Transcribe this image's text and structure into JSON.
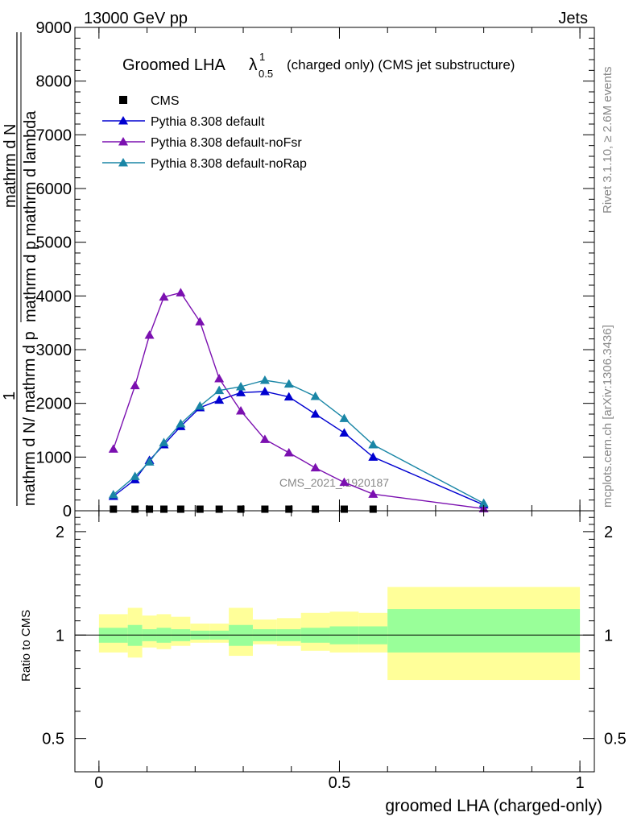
{
  "header": {
    "left": "13000 GeV pp",
    "right": "Jets"
  },
  "side_labels": {
    "rivet": "Rivet 3.1.10, ≥ 2.6M events",
    "mcplots": "mcplots.cern.ch [arXiv:1306.3436]"
  },
  "chart_data": [
    {
      "type": "line",
      "title": "Groomed LHA",
      "title_symbol": "λ",
      "title_superscript": "1",
      "title_subscript": "0.5",
      "title_suffix": "(charged only) (CMS jet substructure)",
      "ylabel_parts": [
        "1",
        "mathrm d N/ mathrm d p",
        "mathrm d N",
        "mathrm d p mathrm d lambda"
      ],
      "watermark": "CMS_2021_I1920187",
      "xlim": [
        -0.05,
        1.03
      ],
      "ylim": [
        0,
        9000
      ],
      "yticks": [
        0,
        1000,
        2000,
        3000,
        4000,
        5000,
        6000,
        7000,
        8000,
        9000
      ],
      "yticklabels": [
        "0",
        "1000",
        "2000",
        "3000",
        "4000",
        "5000",
        "6000",
        "7000",
        "8000",
        "9000"
      ],
      "legend_position": "top-left",
      "series": [
        {
          "name": "CMS",
          "marker": "square",
          "color": "#000000",
          "x": [
            0.03,
            0.075,
            0.105,
            0.135,
            0.17,
            0.21,
            0.25,
            0.295,
            0.345,
            0.395,
            0.45,
            0.51,
            0.57
          ],
          "y": [
            30,
            30,
            30,
            30,
            30,
            30,
            30,
            30,
            30,
            30,
            30,
            30,
            30
          ]
        },
        {
          "name": "Pythia 8.308 default",
          "marker": "triangle",
          "color": "#0000d0",
          "x": [
            0.03,
            0.075,
            0.105,
            0.135,
            0.17,
            0.21,
            0.25,
            0.295,
            0.345,
            0.395,
            0.45,
            0.51,
            0.57,
            0.8
          ],
          "y": [
            270,
            580,
            940,
            1230,
            1570,
            1920,
            2060,
            2200,
            2220,
            2120,
            1800,
            1450,
            1000,
            110
          ]
        },
        {
          "name": "Pythia 8.308 default-noFsr",
          "marker": "triangle",
          "color": "#7b10b0",
          "x": [
            0.03,
            0.075,
            0.105,
            0.135,
            0.17,
            0.21,
            0.25,
            0.295,
            0.345,
            0.395,
            0.45,
            0.51,
            0.57,
            0.8
          ],
          "y": [
            1150,
            2330,
            3270,
            3980,
            4060,
            3520,
            2460,
            1860,
            1330,
            1080,
            800,
            530,
            310,
            40
          ]
        },
        {
          "name": "Pythia 8.308 default-noRap",
          "marker": "triangle",
          "color": "#1a86a6",
          "x": [
            0.03,
            0.075,
            0.105,
            0.135,
            0.17,
            0.21,
            0.25,
            0.295,
            0.345,
            0.395,
            0.45,
            0.51,
            0.57,
            0.8
          ],
          "y": [
            300,
            640,
            910,
            1270,
            1620,
            1950,
            2240,
            2310,
            2430,
            2360,
            2130,
            1720,
            1230,
            140
          ]
        }
      ]
    },
    {
      "type": "area",
      "ylabel": "Ratio to CMS",
      "xlabel": "groomed LHA (charged-only)",
      "xlim": [
        -0.05,
        1.03
      ],
      "xticks": [
        0,
        0.5,
        1
      ],
      "xticklabels": [
        "0",
        "0.5",
        "1"
      ],
      "ylim": [
        0.4,
        2.3
      ],
      "yticks": [
        0.5,
        1,
        2
      ],
      "yticklabels": [
        "0.5",
        "1",
        "2"
      ],
      "reference_line": 1,
      "bands": {
        "inner_color": "#99ff99",
        "outer_color": "#ffff99",
        "bin_edges": [
          0,
          0.06,
          0.09,
          0.12,
          0.15,
          0.19,
          0.23,
          0.27,
          0.32,
          0.37,
          0.42,
          0.48,
          0.54,
          0.6,
          1.0
        ],
        "inner_low": [
          0.95,
          0.93,
          0.96,
          0.95,
          0.96,
          0.97,
          0.97,
          0.93,
          0.96,
          0.96,
          0.95,
          0.94,
          0.94,
          0.89
        ],
        "inner_high": [
          1.05,
          1.07,
          1.04,
          1.05,
          1.04,
          1.03,
          1.03,
          1.07,
          1.04,
          1.04,
          1.05,
          1.06,
          1.06,
          1.19
        ],
        "outer_low": [
          0.89,
          0.86,
          0.92,
          0.91,
          0.93,
          0.95,
          0.95,
          0.87,
          0.94,
          0.93,
          0.9,
          0.89,
          0.89,
          0.74
        ],
        "outer_high": [
          1.15,
          1.2,
          1.14,
          1.15,
          1.13,
          1.08,
          1.08,
          1.2,
          1.11,
          1.12,
          1.16,
          1.17,
          1.16,
          1.38
        ]
      }
    }
  ]
}
